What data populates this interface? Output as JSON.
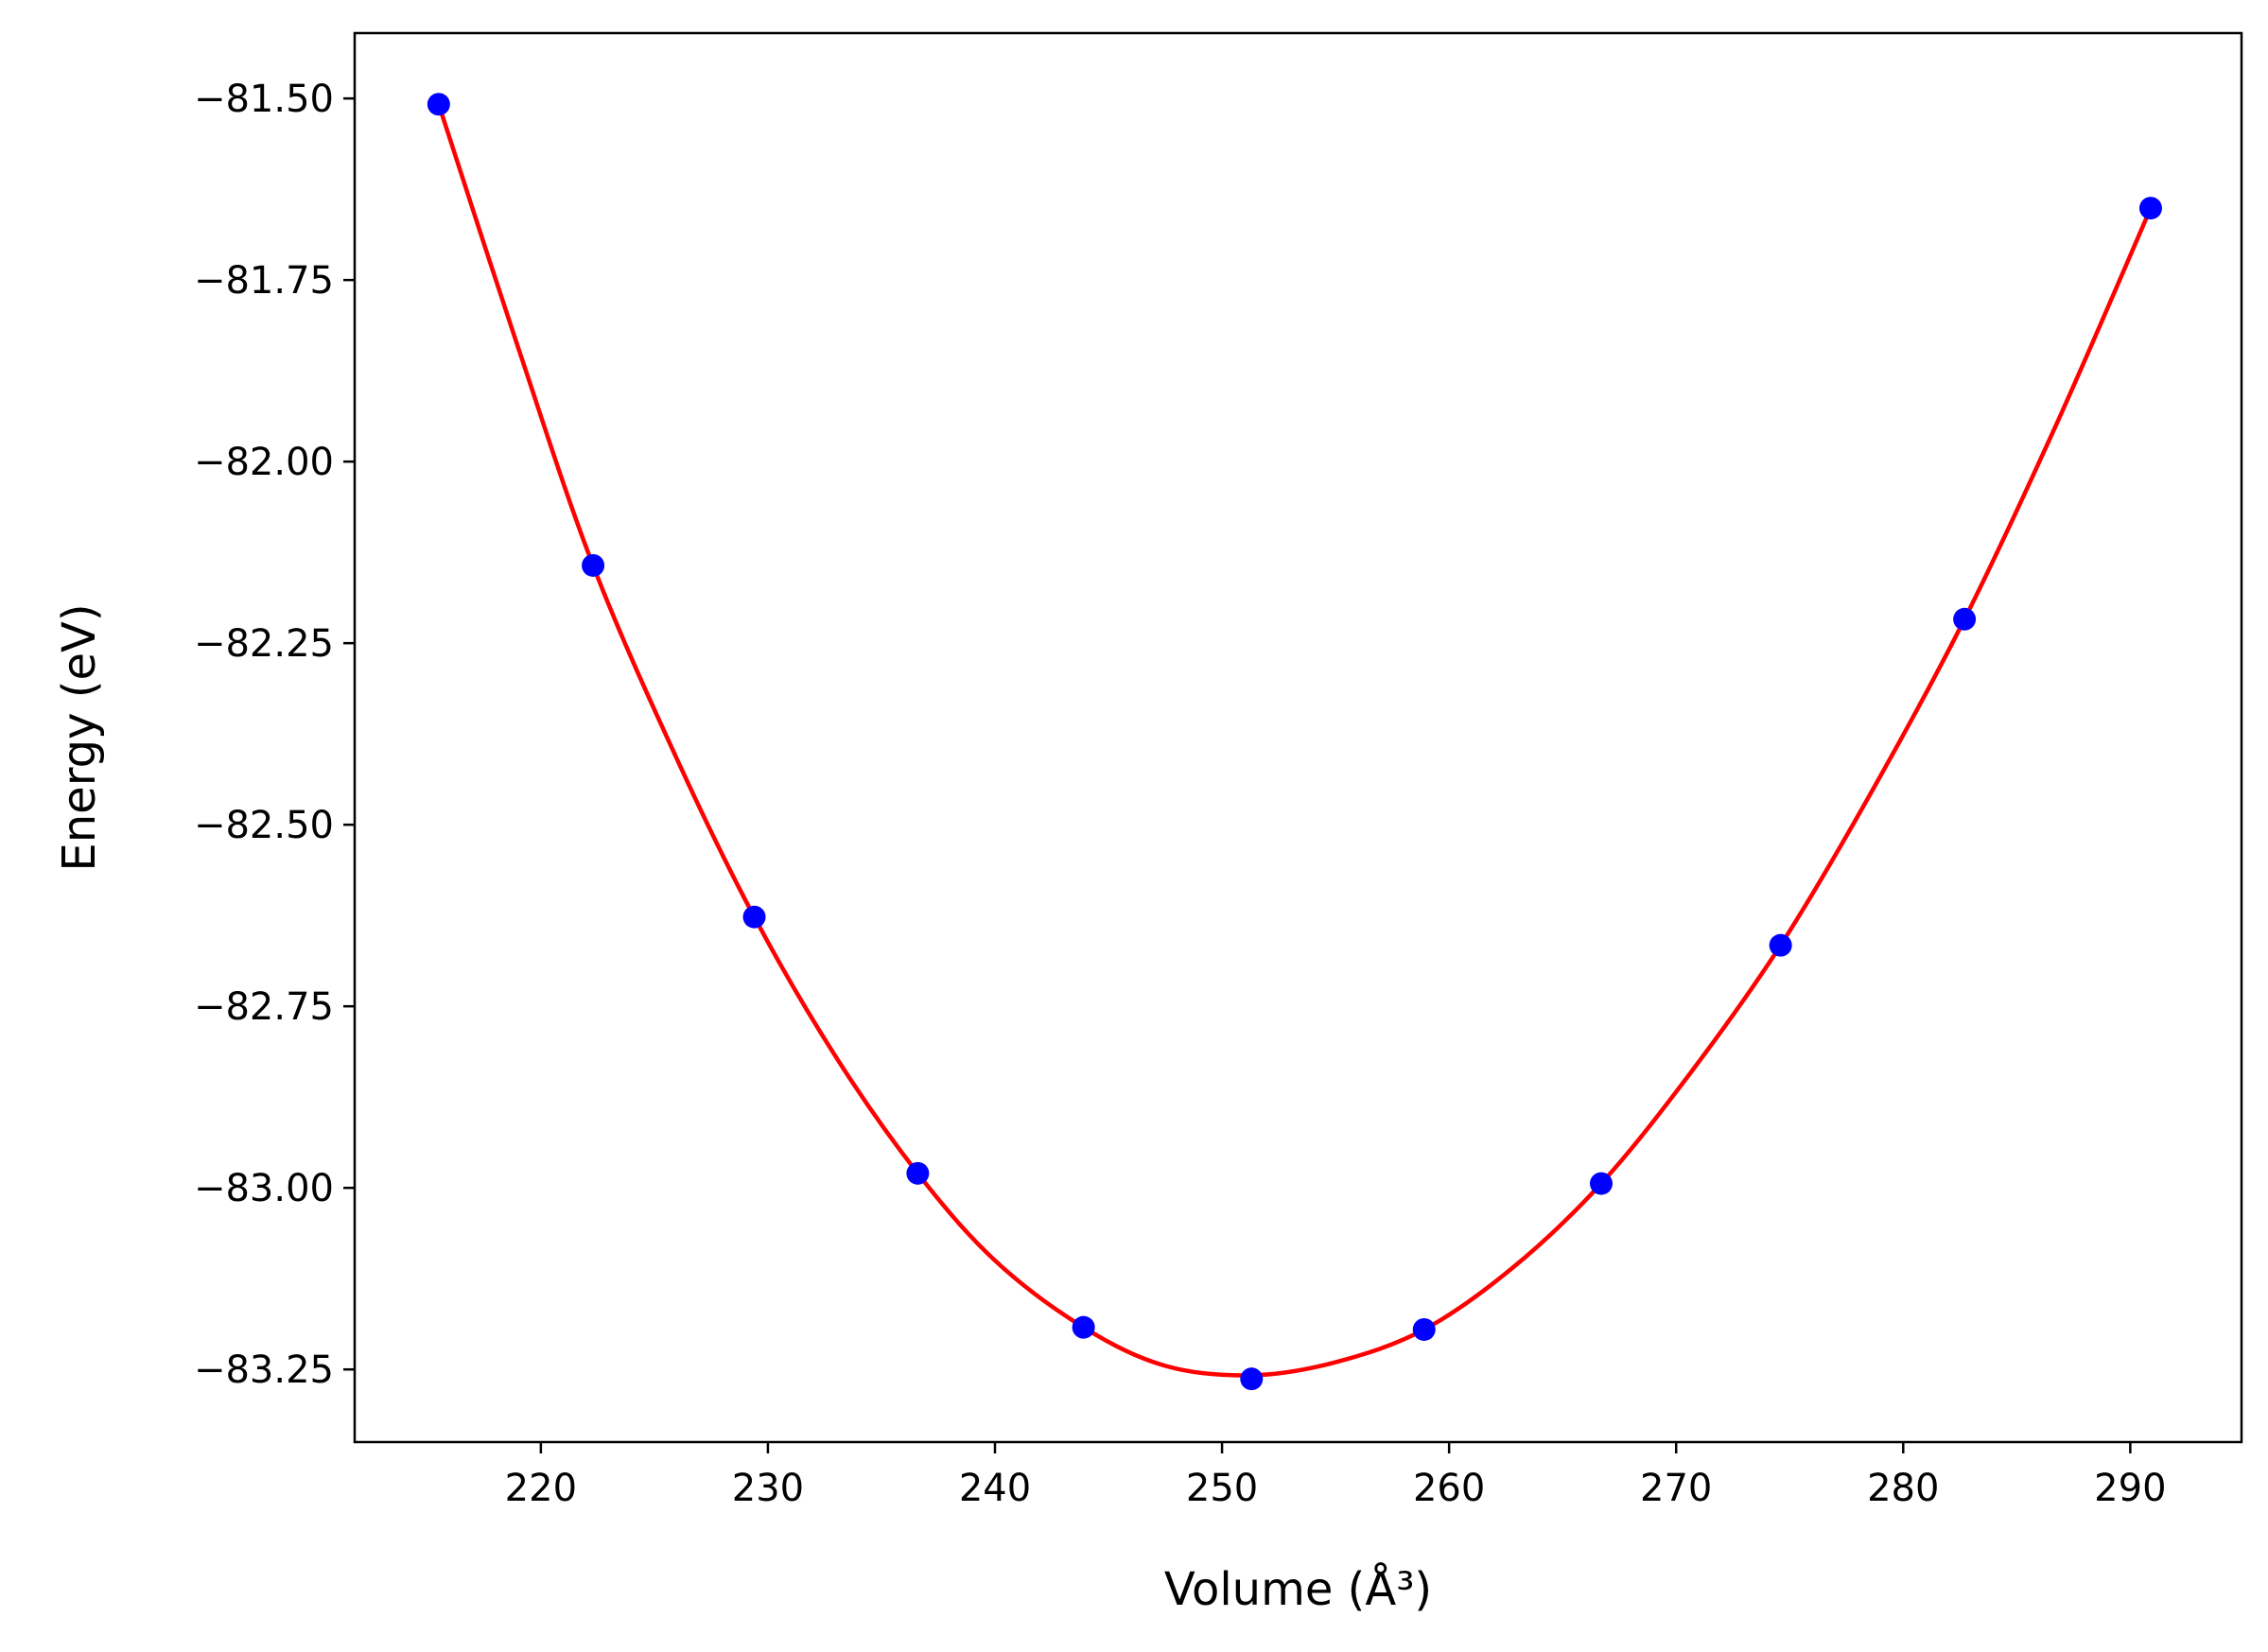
{
  "chart_data": {
    "type": "scatter",
    "title": "",
    "xlabel": "Volume (Å³)",
    "ylabel": "Energy (eV)",
    "xlim": [
      211.8,
      294.9
    ],
    "ylim": [
      -83.35,
      -81.41
    ],
    "xticks": [
      220,
      230,
      240,
      250,
      260,
      270,
      280,
      290
    ],
    "yticks": [
      -81.5,
      -81.75,
      -82.0,
      -82.25,
      -82.5,
      -82.75,
      -83.0,
      -83.25
    ],
    "xtick_labels": [
      "220",
      "230",
      "240",
      "250",
      "260",
      "270",
      "280",
      "290"
    ],
    "ytick_labels": [
      "−81.50",
      "−81.75",
      "−82.00",
      "−82.25",
      "−82.50",
      "−82.75",
      "−83.00",
      "−83.25"
    ],
    "grid": false,
    "series": [
      {
        "kind": "points",
        "color": "#0000ff",
        "x": [
          215.5,
          222.3,
          229.4,
          236.6,
          243.9,
          251.3,
          258.9,
          266.7,
          274.6,
          282.7,
          290.9
        ],
        "y": [
          -81.508,
          -82.143,
          -82.627,
          -82.98,
          -83.192,
          -83.263,
          -83.195,
          -82.994,
          -82.666,
          -82.217,
          -81.651
        ]
      },
      {
        "kind": "fit-curve",
        "color": "#ff0000",
        "x": [
          215.5,
          219.0,
          222.3,
          226.0,
          229.4,
          233.0,
          236.6,
          240.0,
          243.9,
          247.5,
          251.3,
          255.0,
          258.9,
          262.8,
          266.7,
          270.6,
          274.6,
          278.6,
          282.7,
          286.8,
          290.9
        ],
        "y": [
          -81.508,
          -81.843,
          -82.143,
          -82.41,
          -82.627,
          -82.82,
          -82.98,
          -83.1,
          -83.192,
          -83.245,
          -83.258,
          -83.24,
          -83.195,
          -83.11,
          -82.994,
          -82.843,
          -82.666,
          -82.455,
          -82.217,
          -81.945,
          -81.651
        ]
      }
    ]
  }
}
